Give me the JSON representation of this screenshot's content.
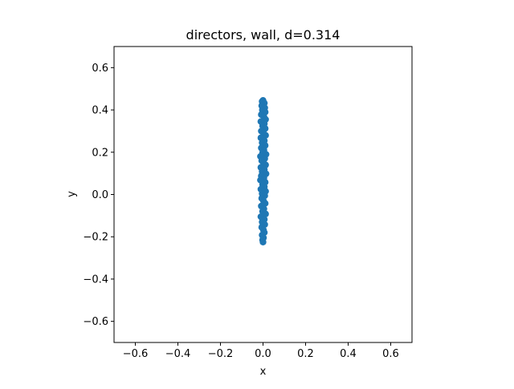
{
  "chart_data": {
    "type": "scatter",
    "title": "directors, wall, d=0.314",
    "xlabel": "x",
    "ylabel": "y",
    "xlim": [
      -0.7,
      0.7
    ],
    "ylim": [
      -0.7,
      0.7
    ],
    "xticks": [
      -0.6,
      -0.4,
      -0.2,
      0.0,
      0.2,
      0.4,
      0.6
    ],
    "yticks": [
      -0.6,
      -0.4,
      -0.2,
      0.0,
      0.2,
      0.4,
      0.6
    ],
    "xtick_labels": [
      "−0.6",
      "−0.4",
      "−0.2",
      "0.0",
      "0.2",
      "0.4",
      "0.6"
    ],
    "ytick_labels": [
      "−0.6",
      "−0.4",
      "−0.2",
      "0.0",
      "0.2",
      "0.4",
      "0.6"
    ],
    "grid": false,
    "marker_color": "#1f77b4",
    "series": [
      {
        "points": [
          [
            0.0,
            0.445
          ],
          [
            -0.004,
            0.44
          ],
          [
            0.006,
            0.432
          ],
          [
            -0.006,
            0.42
          ],
          [
            0.008,
            0.41
          ],
          [
            -0.003,
            0.4
          ],
          [
            0.01,
            0.39
          ],
          [
            -0.008,
            0.378
          ],
          [
            0.004,
            0.368
          ],
          [
            0.012,
            0.355
          ],
          [
            -0.01,
            0.345
          ],
          [
            0.006,
            0.335
          ],
          [
            -0.002,
            0.325
          ],
          [
            0.01,
            0.312
          ],
          [
            -0.008,
            0.3
          ],
          [
            0.002,
            0.29
          ],
          [
            0.012,
            0.28
          ],
          [
            -0.01,
            0.268
          ],
          [
            0.006,
            0.255
          ],
          [
            -0.004,
            0.245
          ],
          [
            0.01,
            0.232
          ],
          [
            -0.008,
            0.22
          ],
          [
            0.004,
            0.21
          ],
          [
            -0.002,
            0.198
          ],
          [
            0.014,
            0.19
          ],
          [
            -0.012,
            0.18
          ],
          [
            0.008,
            0.17
          ],
          [
            -0.006,
            0.16
          ],
          [
            0.002,
            0.15
          ],
          [
            0.012,
            0.14
          ],
          [
            -0.01,
            0.128
          ],
          [
            0.006,
            0.118
          ],
          [
            -0.004,
            0.108
          ],
          [
            0.014,
            0.098
          ],
          [
            -0.008,
            0.088
          ],
          [
            0.004,
            0.078
          ],
          [
            -0.012,
            0.068
          ],
          [
            0.01,
            0.058
          ],
          [
            -0.002,
            0.048
          ],
          [
            0.006,
            0.036
          ],
          [
            -0.01,
            0.025
          ],
          [
            0.012,
            0.015
          ],
          [
            -0.004,
            0.004
          ],
          [
            0.008,
            -0.006
          ],
          [
            -0.006,
            -0.018
          ],
          [
            0.002,
            -0.03
          ],
          [
            0.01,
            -0.042
          ],
          [
            -0.008,
            -0.055
          ],
          [
            0.004,
            -0.068
          ],
          [
            -0.002,
            -0.08
          ],
          [
            0.012,
            -0.092
          ],
          [
            -0.01,
            -0.105
          ],
          [
            0.006,
            -0.118
          ],
          [
            -0.004,
            -0.13
          ],
          [
            0.008,
            -0.142
          ],
          [
            -0.006,
            -0.155
          ],
          [
            0.002,
            -0.168
          ],
          [
            0.006,
            -0.18
          ],
          [
            -0.004,
            -0.192
          ],
          [
            0.002,
            -0.205
          ],
          [
            -0.002,
            -0.215
          ],
          [
            0.0,
            -0.225
          ]
        ]
      }
    ]
  }
}
